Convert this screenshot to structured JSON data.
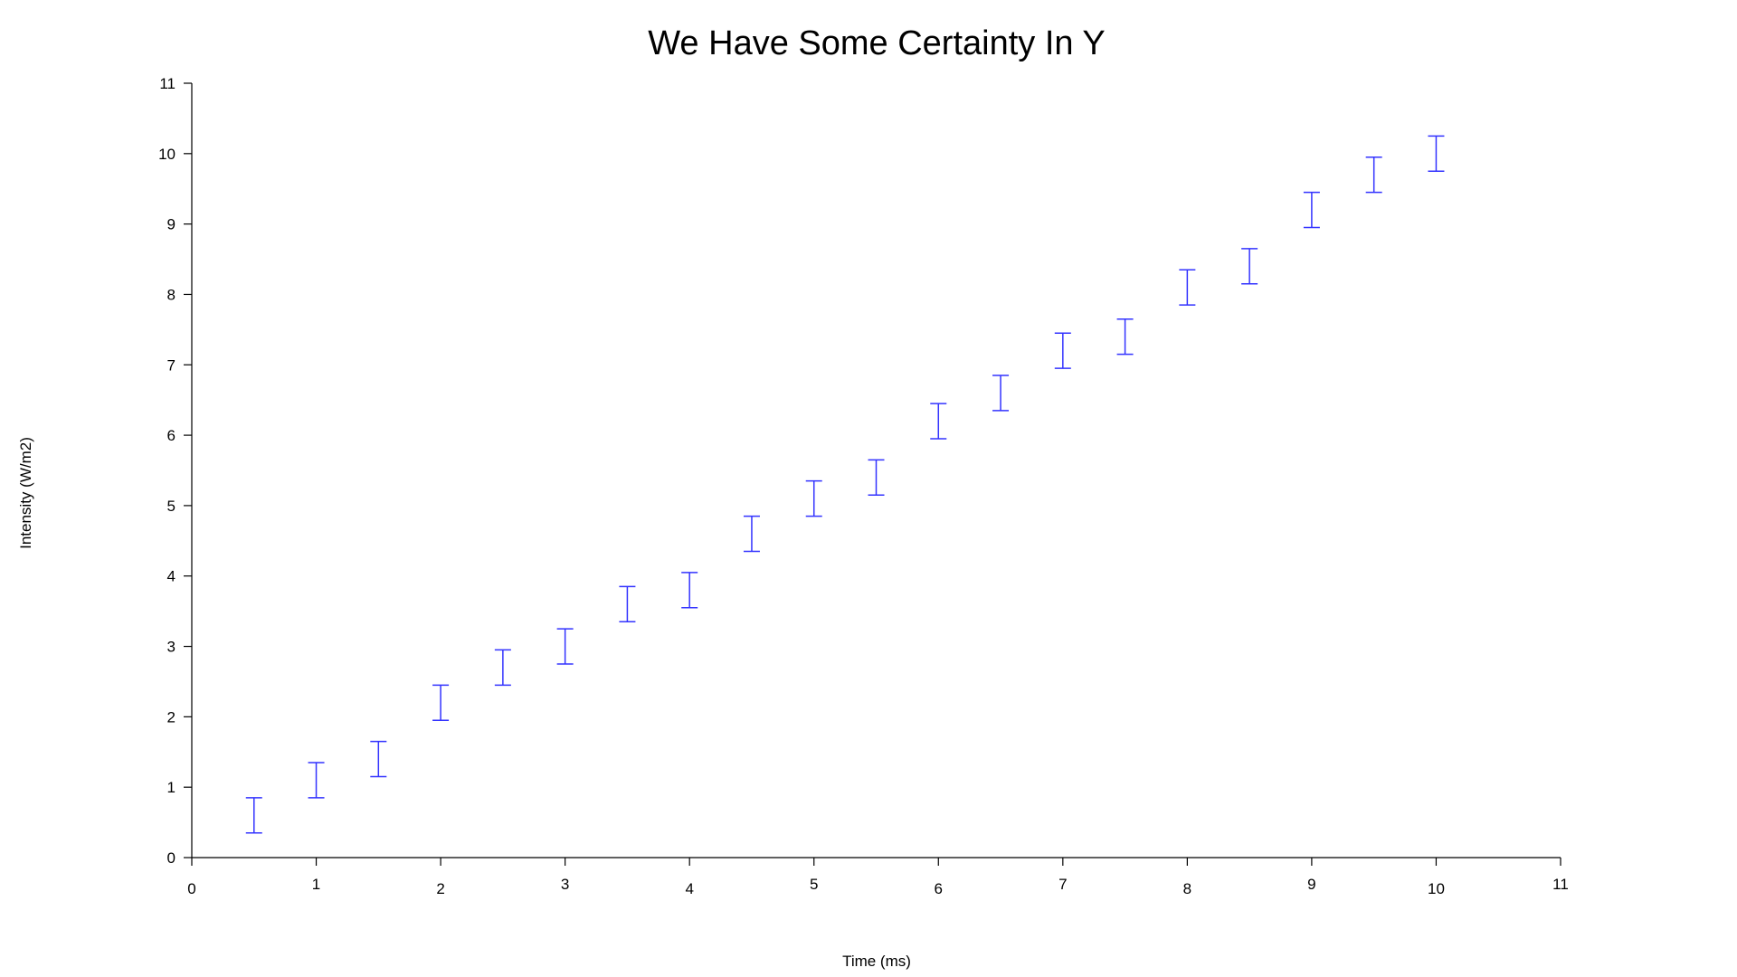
{
  "chart_data": {
    "type": "errorbar",
    "title": "We Have Some Certainty In Y",
    "xlabel": "Time (ms)",
    "ylabel": "Intensity (W/m2)",
    "xlim": [
      0,
      11
    ],
    "ylim": [
      0,
      11
    ],
    "xticks": [
      "0",
      "1",
      "2",
      "3",
      "4",
      "5",
      "6",
      "7",
      "8",
      "9",
      "10",
      "11"
    ],
    "yticks": [
      "0",
      "1",
      "2",
      "3",
      "4",
      "5",
      "6",
      "7",
      "8",
      "9",
      "10",
      "11"
    ],
    "grid": false,
    "legend": "none",
    "series": [
      {
        "color": "#3333ff",
        "points": [
          {
            "x": 0.5,
            "y_low": 0.35,
            "y_high": 0.85
          },
          {
            "x": 1.0,
            "y_low": 0.85,
            "y_high": 1.35
          },
          {
            "x": 1.5,
            "y_low": 1.15,
            "y_high": 1.65
          },
          {
            "x": 2.0,
            "y_low": 1.95,
            "y_high": 2.45
          },
          {
            "x": 2.5,
            "y_low": 2.45,
            "y_high": 2.95
          },
          {
            "x": 3.0,
            "y_low": 2.75,
            "y_high": 3.25
          },
          {
            "x": 3.5,
            "y_low": 3.35,
            "y_high": 3.85
          },
          {
            "x": 4.0,
            "y_low": 3.55,
            "y_high": 4.05
          },
          {
            "x": 4.5,
            "y_low": 4.35,
            "y_high": 4.85
          },
          {
            "x": 5.0,
            "y_low": 4.85,
            "y_high": 5.35
          },
          {
            "x": 5.5,
            "y_low": 5.15,
            "y_high": 5.65
          },
          {
            "x": 6.0,
            "y_low": 5.95,
            "y_high": 6.45
          },
          {
            "x": 6.5,
            "y_low": 6.35,
            "y_high": 6.85
          },
          {
            "x": 7.0,
            "y_low": 6.95,
            "y_high": 7.45
          },
          {
            "x": 7.5,
            "y_low": 7.15,
            "y_high": 7.65
          },
          {
            "x": 8.0,
            "y_low": 7.85,
            "y_high": 8.35
          },
          {
            "x": 8.5,
            "y_low": 8.15,
            "y_high": 8.65
          },
          {
            "x": 9.0,
            "y_low": 8.95,
            "y_high": 9.45
          },
          {
            "x": 9.5,
            "y_low": 9.45,
            "y_high": 9.95
          },
          {
            "x": 10.0,
            "y_low": 9.75,
            "y_high": 10.25
          }
        ]
      }
    ]
  }
}
